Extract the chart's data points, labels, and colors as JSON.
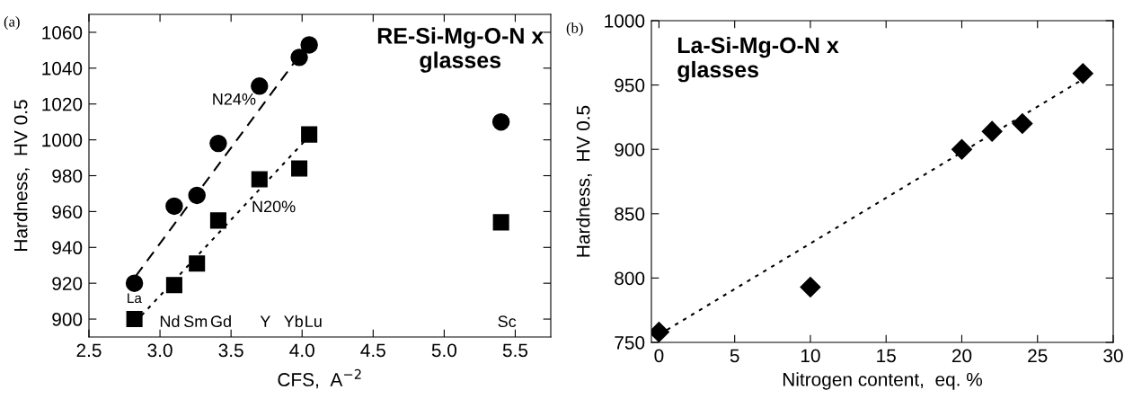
{
  "chart_data": [
    {
      "type": "scatter",
      "title": "RE-Si-Mg-O-N x\nglasses",
      "xlabel": "CFS,  A$^{−2}$",
      "ylabel": "Hardness,  HV 0.5",
      "xlim": [
        2.5,
        5.75
      ],
      "xticks": [
        2.5,
        {
          "value": 3,
          "label": "3.0"
        },
        3.5,
        {
          "value": 4,
          "label": "4.0"
        },
        4.5,
        {
          "value": 5,
          "label": "5.0"
        },
        5.5
      ],
      "ylim": [
        890,
        1070
      ],
      "yticks": [
        900,
        920,
        940,
        960,
        980,
        1000,
        1020,
        1040,
        1060
      ],
      "grid": false,
      "legend": false,
      "series": [
        {
          "marker": "circle",
          "color": "#000000",
          "x": [
            2.82,
            3.1,
            3.26,
            3.41,
            3.7,
            3.98,
            4.05,
            5.4
          ],
          "values": [
            920,
            963,
            969,
            998,
            1030,
            1046,
            1053,
            1010
          ]
        },
        {
          "marker": "square",
          "color": "#000000",
          "x": [
            2.82,
            3.1,
            3.26,
            3.41,
            3.7,
            3.98,
            4.05,
            5.4
          ],
          "values": [
            900,
            919,
            931,
            955,
            978,
            984,
            1003,
            954
          ]
        },
        {
          "type": "line",
          "line_style": "dashed",
          "color": "#000000",
          "x": [
            2.83,
            4.0
          ],
          "values": [
            924,
            1049
          ]
        },
        {
          "type": "line",
          "line_style": "dotted",
          "color": "#000000",
          "x": [
            2.87,
            4.05
          ],
          "values": [
            902,
            1002
          ]
        }
      ],
      "annotations": [
        "(a)",
        "La",
        "Nd",
        "Sm",
        "Gd",
        "Y",
        "Yb",
        "Lu",
        "Sc",
        "N24%",
        "N20%"
      ]
    },
    {
      "type": "scatter",
      "title": "La-Si-Mg-O-N x\nglasses",
      "xlabel": "Nitrogen content,  eq. %",
      "ylabel": "Hardness,  HV 0.5",
      "xlim": [
        -0.5,
        30
      ],
      "xticks": [
        0,
        5,
        10,
        15,
        20,
        25,
        30
      ],
      "ylim": [
        750,
        1000
      ],
      "yticks": [
        750,
        800,
        850,
        900,
        950,
        1000
      ],
      "grid": false,
      "legend": false,
      "series": [
        {
          "marker": "diamond",
          "color": "#000000",
          "x": [
            0,
            10,
            20,
            22,
            24,
            28
          ],
          "values": [
            758,
            793,
            900,
            914,
            920,
            959
          ]
        },
        {
          "type": "line",
          "line_style": "dotted",
          "color": "#000000",
          "x": [
            0,
            28.5
          ],
          "values": [
            756,
            958
          ]
        }
      ],
      "annotations": [
        "(b)"
      ]
    }
  ]
}
